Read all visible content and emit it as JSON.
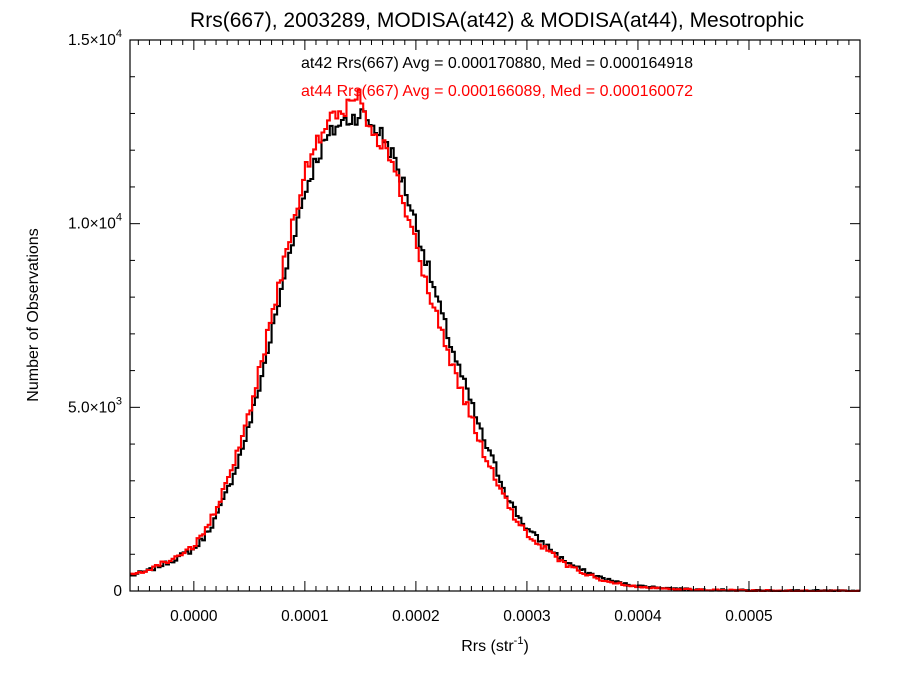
{
  "chart_data": {
    "type": "histogram",
    "title": "Rrs(667), 2003289, MODISA(at42) & MODISA(at44), Mesotrophic",
    "xlabel_main": "Rrs (str",
    "xlabel_sup": "-1",
    "xlabel_tail": ")",
    "ylabel": "Number of Observations",
    "xlim": [
      -5.75e-05,
      0.0006
    ],
    "ylim": [
      0,
      15000
    ],
    "x_ticks": [
      {
        "value": 0.0,
        "label": "0.0000"
      },
      {
        "value": 0.0001,
        "label": "0.0001"
      },
      {
        "value": 0.0002,
        "label": "0.0002"
      },
      {
        "value": 0.0003,
        "label": "0.0003"
      },
      {
        "value": 0.0004,
        "label": "0.0004"
      },
      {
        "value": 0.0005,
        "label": "0.0005"
      }
    ],
    "y_ticks": [
      {
        "value": 0,
        "mantissa": "0",
        "exp": ""
      },
      {
        "value": 5000,
        "mantissa": "5.0×10",
        "exp": "3"
      },
      {
        "value": 10000,
        "mantissa": "1.0×10",
        "exp": "4"
      },
      {
        "value": 15000,
        "mantissa": "1.5×10",
        "exp": "4"
      }
    ],
    "grid": false,
    "series": [
      {
        "name": "at42",
        "color": "#000000",
        "annotation": "at42 Rrs(667) Avg = 0.000170880, Med = 0.000164918",
        "x": [
          -5.75e-05,
          -5e-05,
          -4e-05,
          -3e-05,
          -2e-05,
          -1e-05,
          0.0,
          1e-05,
          2e-05,
          3e-05,
          4e-05,
          5e-05,
          6e-05,
          7e-05,
          8e-05,
          9e-05,
          0.0001,
          0.00011,
          0.00012,
          0.00013,
          0.00014,
          0.00015,
          0.000155,
          0.00016,
          0.00017,
          0.00018,
          0.00019,
          0.0002,
          0.00021,
          0.00022,
          0.00023,
          0.00024,
          0.00025,
          0.00026,
          0.00027,
          0.00028,
          0.00029,
          0.0003,
          0.00031,
          0.00032,
          0.00033,
          0.00034,
          0.00035,
          0.00036,
          0.00037,
          0.00038,
          0.00039,
          0.0004,
          0.00042,
          0.00045,
          0.0005,
          0.00055,
          0.0006
        ],
        "y": [
          400,
          480,
          560,
          700,
          820,
          990,
          1130,
          1500,
          2000,
          2700,
          3550,
          4500,
          5700,
          7000,
          8300,
          9700,
          10850,
          11750,
          12300,
          12700,
          12850,
          13000,
          12900,
          12700,
          12400,
          11800,
          11000,
          10000,
          8900,
          7850,
          6850,
          5950,
          5100,
          4200,
          3500,
          2750,
          2150,
          1700,
          1420,
          1180,
          900,
          720,
          560,
          440,
          330,
          250,
          180,
          140,
          90,
          40,
          15,
          5,
          0
        ]
      },
      {
        "name": "at44",
        "color": "#ff0000",
        "annotation": "at44 Rrs(667) Avg = 0.000166089, Med = 0.000160072",
        "x": [
          -5.75e-05,
          -5e-05,
          -4e-05,
          -3e-05,
          -2e-05,
          -1e-05,
          0.0,
          1e-05,
          2e-05,
          3e-05,
          4e-05,
          5e-05,
          6e-05,
          7e-05,
          8e-05,
          9e-05,
          0.0001,
          0.00011,
          0.00012,
          0.00013,
          0.00014,
          0.00015,
          0.000155,
          0.00016,
          0.00017,
          0.00018,
          0.00019,
          0.0002,
          0.00021,
          0.00022,
          0.00023,
          0.00024,
          0.00025,
          0.00026,
          0.00027,
          0.00028,
          0.00029,
          0.0003,
          0.00031,
          0.00032,
          0.00033,
          0.00034,
          0.00035,
          0.00036,
          0.00037,
          0.00038,
          0.00039,
          0.0004,
          0.00042,
          0.00045,
          0.0005,
          0.00055,
          0.0006
        ],
        "y": [
          420,
          500,
          600,
          740,
          860,
          1040,
          1200,
          1620,
          2200,
          2950,
          3850,
          4900,
          6100,
          7450,
          8800,
          10200,
          11350,
          12150,
          12700,
          13000,
          13200,
          13500,
          13000,
          12600,
          12200,
          11500,
          10500,
          9400,
          8300,
          7350,
          6400,
          5550,
          4700,
          3850,
          3150,
          2500,
          1950,
          1550,
          1300,
          1080,
          820,
          650,
          500,
          390,
          290,
          220,
          160,
          120,
          80,
          35,
          12,
          4,
          0
        ]
      }
    ]
  }
}
